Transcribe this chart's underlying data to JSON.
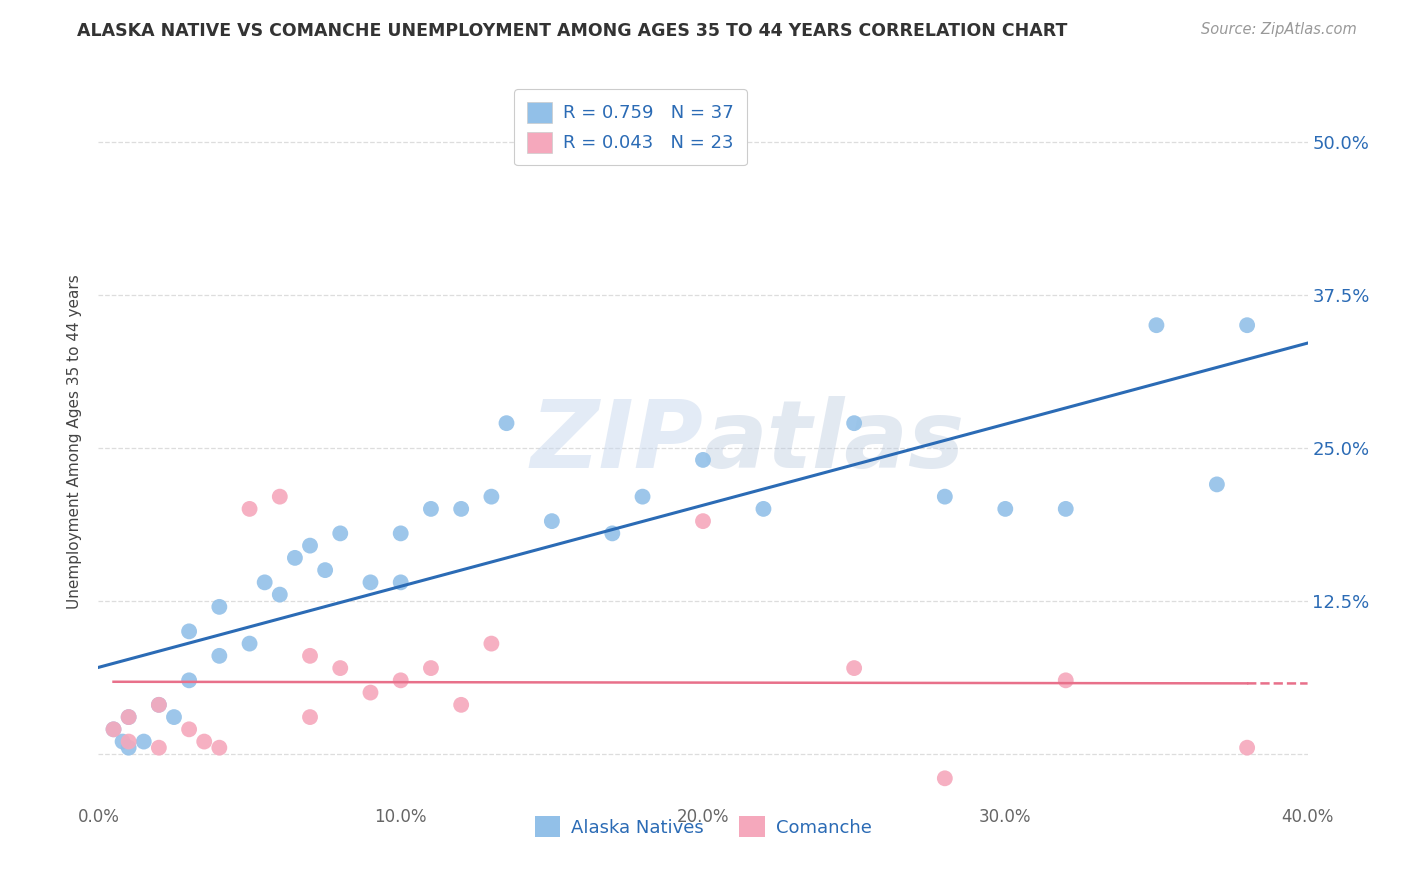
{
  "title": "ALASKA NATIVE VS COMANCHE UNEMPLOYMENT AMONG AGES 35 TO 44 YEARS CORRELATION CHART",
  "source": "Source: ZipAtlas.com",
  "ylabel": "Unemployment Among Ages 35 to 44 years",
  "x_min": 0.0,
  "x_max": 0.4,
  "y_min": -0.04,
  "y_max": 0.55,
  "y_ticks": [
    0.0,
    0.125,
    0.25,
    0.375,
    0.5
  ],
  "y_tick_labels": [
    "",
    "12.5%",
    "25.0%",
    "37.5%",
    "50.0%"
  ],
  "x_ticks": [
    0.0,
    0.1,
    0.2,
    0.3,
    0.4
  ],
  "x_tick_labels": [
    "0.0%",
    "10.0%",
    "20.0%",
    "30.0%",
    "40.0%"
  ],
  "alaska_color": "#92C0E8",
  "comanche_color": "#F5A8BC",
  "alaska_line_color": "#2B6BB5",
  "comanche_line_color": "#E8708A",
  "R_alaska": 0.759,
  "N_alaska": 37,
  "R_comanche": 0.043,
  "N_comanche": 23,
  "legend_alaska": "Alaska Natives",
  "legend_comanche": "Comanche",
  "alaska_x": [
    0.005,
    0.008,
    0.01,
    0.01,
    0.015,
    0.02,
    0.025,
    0.03,
    0.03,
    0.04,
    0.04,
    0.05,
    0.055,
    0.06,
    0.065,
    0.07,
    0.075,
    0.08,
    0.09,
    0.1,
    0.1,
    0.11,
    0.12,
    0.13,
    0.135,
    0.15,
    0.17,
    0.18,
    0.2,
    0.22,
    0.25,
    0.28,
    0.3,
    0.32,
    0.35,
    0.37,
    0.38
  ],
  "alaska_y": [
    0.02,
    0.01,
    0.03,
    0.005,
    0.01,
    0.04,
    0.03,
    0.06,
    0.1,
    0.08,
    0.12,
    0.09,
    0.14,
    0.13,
    0.16,
    0.17,
    0.15,
    0.18,
    0.14,
    0.14,
    0.18,
    0.2,
    0.2,
    0.21,
    0.27,
    0.19,
    0.18,
    0.21,
    0.24,
    0.2,
    0.27,
    0.21,
    0.2,
    0.2,
    0.35,
    0.22,
    0.35
  ],
  "comanche_x": [
    0.005,
    0.01,
    0.01,
    0.02,
    0.02,
    0.03,
    0.035,
    0.04,
    0.05,
    0.06,
    0.07,
    0.07,
    0.08,
    0.09,
    0.1,
    0.11,
    0.12,
    0.13,
    0.2,
    0.25,
    0.28,
    0.32,
    0.38
  ],
  "comanche_y": [
    0.02,
    0.01,
    0.03,
    0.04,
    0.005,
    0.02,
    0.01,
    0.005,
    0.2,
    0.21,
    0.08,
    0.03,
    0.07,
    0.05,
    0.06,
    0.07,
    0.04,
    0.09,
    0.19,
    0.07,
    -0.02,
    0.06,
    0.005
  ],
  "watermark_zip": "ZIP",
  "watermark_atlas": "atlas",
  "background_color": "#FFFFFF",
  "grid_color": "#DDDDDD",
  "title_color": "#333333",
  "source_color": "#999999",
  "ylabel_color": "#444444",
  "tick_color": "#666666"
}
